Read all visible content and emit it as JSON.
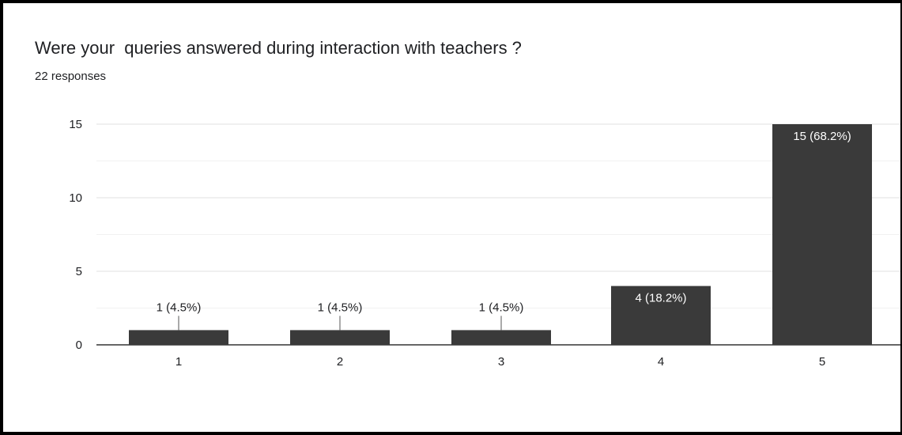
{
  "question": "Were your  queries answered during interaction with teachers ?",
  "responses_text": "22 responses",
  "colors": {
    "bar": "#3a3a3a",
    "grid_major": "#e0e0e0",
    "grid_minor": "#f1f1f1",
    "axis": "#333333",
    "text": "#202124",
    "label_inside": "#ffffff"
  },
  "chart_data": {
    "type": "bar",
    "categories": [
      "1",
      "2",
      "3",
      "4",
      "5"
    ],
    "values": [
      1,
      1,
      1,
      4,
      15
    ],
    "data_labels": [
      "1 (4.5%)",
      "1 (4.5%)",
      "1 (4.5%)",
      "4 (18.2%)",
      "15 (68.2%)"
    ],
    "y_ticks": [
      "0",
      "5",
      "10",
      "15"
    ],
    "ylim": [
      0,
      15
    ],
    "grid": true,
    "legend": "none"
  }
}
